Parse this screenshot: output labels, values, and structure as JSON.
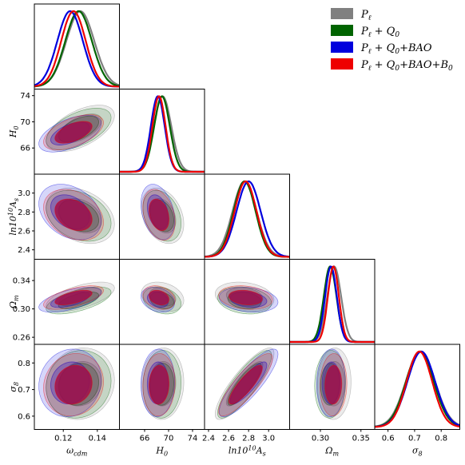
{
  "chart_data": {
    "type": "triangle",
    "parameters": [
      {
        "key": "wcdm",
        "label": "ω",
        "sub": "cdm",
        "ticks": [
          "0.12",
          "0.14"
        ],
        "tick_values": [
          0.12,
          0.14
        ],
        "range": [
          0.103,
          0.153
        ]
      },
      {
        "key": "H0",
        "label": "H",
        "sub": "0",
        "ticks": [
          "66",
          "70",
          "74"
        ],
        "tick_values": [
          66,
          70,
          74
        ],
        "range": [
          61.8,
          76.0
        ]
      },
      {
        "key": "lnAs",
        "label": "ln10",
        "sup": "10",
        "tail": "A",
        "sub": "s",
        "ticks": [
          "2.4",
          "2.6",
          "2.8",
          "3.0"
        ],
        "tick_values": [
          2.4,
          2.6,
          2.8,
          3.0
        ],
        "range": [
          2.36,
          3.21
        ]
      },
      {
        "key": "Om",
        "label": "Ω",
        "sub": "m",
        "ticks": [
          "0.30",
          "0.35"
        ],
        "tick_values": [
          0.3,
          0.35
        ],
        "range": [
          0.262,
          0.367
        ]
      },
      {
        "key": "s8",
        "label": "σ",
        "sub": "8",
        "ticks": [
          "0.6",
          "0.7",
          "0.8"
        ],
        "tick_values": [
          0.6,
          0.7,
          0.8
        ],
        "range": [
          0.55,
          0.87
        ]
      }
    ],
    "y_axes": [
      {
        "key": "H0",
        "ticks": [
          "66",
          "70",
          "74"
        ],
        "tick_values": [
          66,
          70,
          74
        ],
        "range": [
          62.0,
          75.0
        ]
      },
      {
        "key": "lnAs",
        "ticks": [
          "2.4",
          "2.6",
          "2.8",
          "3.0"
        ],
        "tick_values": [
          2.4,
          2.6,
          2.8,
          3.0
        ],
        "range": [
          2.3,
          3.2
        ]
      },
      {
        "key": "Om",
        "ticks": [
          "0.26",
          "0.30",
          "0.34"
        ],
        "tick_values": [
          0.26,
          0.3,
          0.34
        ],
        "range": [
          0.25,
          0.37
        ]
      },
      {
        "key": "s8",
        "ticks": [
          "0.6",
          "0.7",
          "0.8"
        ],
        "tick_values": [
          0.6,
          0.7,
          0.8
        ],
        "range": [
          0.55,
          0.87
        ]
      }
    ],
    "series": [
      {
        "name": "P_ℓ",
        "legend_parts": [
          "P",
          "ℓ",
          "",
          "",
          ""
        ],
        "color": "#808080",
        "mean": {
          "wcdm": 0.13,
          "H0": 69.0,
          "lnAs": 2.76,
          "Om": 0.317,
          "s8": 0.722
        },
        "sigma": {
          "wcdm": 0.0082,
          "H0": 1.45,
          "lnAs": 0.12,
          "Om": 0.0085,
          "s8": 0.055
        }
      },
      {
        "name": "P_ℓ + Q_0",
        "legend_parts": [
          "P",
          "ℓ",
          " + Q",
          "0",
          ""
        ],
        "color": "#006400",
        "mean": {
          "wcdm": 0.129,
          "H0": 68.9,
          "lnAs": 2.76,
          "Om": 0.312,
          "s8": 0.72
        },
        "sigma": {
          "wcdm": 0.0078,
          "H0": 1.3,
          "lnAs": 0.11,
          "Om": 0.0078,
          "s8": 0.052
        }
      },
      {
        "name": "P_ℓ + Q_0+BAO",
        "legend_parts": [
          "P",
          "ℓ",
          " + Q",
          "0",
          "+BAO"
        ],
        "color": "#0000dd",
        "mean": {
          "wcdm": 0.124,
          "H0": 68.2,
          "lnAs": 2.8,
          "Om": 0.313,
          "s8": 0.725
        },
        "sigma": {
          "wcdm": 0.0075,
          "H0": 1.15,
          "lnAs": 0.12,
          "Om": 0.0072,
          "s8": 0.052
        }
      },
      {
        "name": "P_ℓ + Q_0+BAO+B_0",
        "legend_parts": [
          "P",
          "ℓ",
          " + Q",
          "0",
          "+BAO+B",
          "0"
        ],
        "color": "#ee0000",
        "mean": {
          "wcdm": 0.126,
          "H0": 68.4,
          "lnAs": 2.77,
          "Om": 0.316,
          "s8": 0.718
        },
        "sigma": {
          "wcdm": 0.0072,
          "H0": 1.1,
          "lnAs": 0.11,
          "Om": 0.0068,
          "s8": 0.048
        }
      }
    ],
    "highlight_color": "#a0104a",
    "legend_position": "top-right",
    "grid": false
  }
}
